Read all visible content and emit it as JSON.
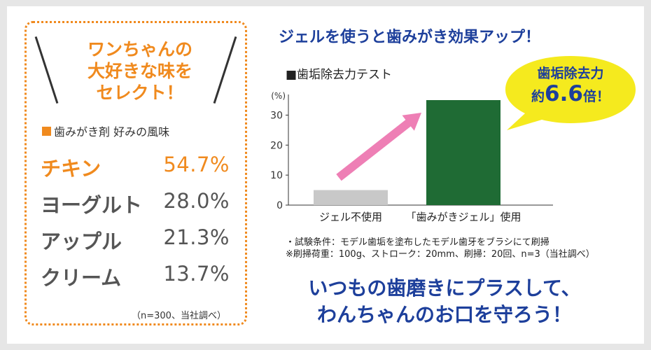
{
  "flavor_panel": {
    "heading_lines": [
      "ワンちゃんの",
      "大好きな味を",
      "セレクト！"
    ],
    "poll_label": "歯みがき剤 好みの風味",
    "items": [
      {
        "name": "チキン",
        "pct": "54.7%"
      },
      {
        "name": "ヨーグルト",
        "pct": "28.0%"
      },
      {
        "name": "アップル",
        "pct": "21.3%"
      },
      {
        "name": "クリーム",
        "pct": "13.7%"
      }
    ],
    "note": "（n=300、当社調べ）",
    "accent_color": "#f08a1e"
  },
  "main_title": "ジェルを使うと歯みがき効果アップ！",
  "chart_heading": "■歯垢除去力テスト",
  "bubble": {
    "line1": "歯垢除去力",
    "prefix": "約",
    "value": "6.6",
    "suffix": "倍！",
    "color": "#f5ea1e"
  },
  "chart_data": {
    "type": "bar",
    "categories": [
      "ジェル不使用",
      "「歯みがきジェル」使用"
    ],
    "values": [
      5,
      35
    ],
    "ylabel": "(%)",
    "ylim": [
      0,
      35
    ],
    "yticks": [
      0,
      10,
      20,
      30
    ],
    "bar_colors": [
      "#c8c8c8",
      "#1f6b34"
    ],
    "grid": false,
    "arrow_color": "#ee7fb5"
  },
  "notes": [
    "・試験条件：モデル歯垢を塗布したモデル歯牙をブラシにて刷掃",
    "※刷掃荷重：100g、ストローク：20mm、刷掃：20回、n=3（当社調べ）"
  ],
  "slogan_lines": [
    "いつもの歯磨きにプラスして、",
    "わんちゃんのお口を守ろう！"
  ]
}
